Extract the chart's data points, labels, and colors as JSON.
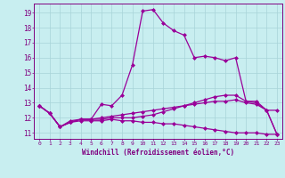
{
  "xlabel": "Windchill (Refroidissement éolien,°C)",
  "ylabel": "",
  "bg_color": "#c8eef0",
  "grid_color": "#a8d4d8",
  "line_color": "#990099",
  "xlim": [
    -0.5,
    23.5
  ],
  "ylim": [
    10.6,
    19.6
  ],
  "yticks": [
    11,
    12,
    13,
    14,
    15,
    16,
    17,
    18,
    19
  ],
  "xticks": [
    0,
    1,
    2,
    3,
    4,
    5,
    6,
    7,
    8,
    9,
    10,
    11,
    12,
    13,
    14,
    15,
    16,
    17,
    18,
    19,
    20,
    21,
    22,
    23
  ],
  "curve1_x": [
    0,
    1,
    2,
    3,
    4,
    5,
    6,
    7,
    8,
    9,
    10,
    11,
    12,
    13,
    14,
    15,
    16,
    17,
    18,
    19,
    20,
    21,
    22,
    23
  ],
  "curve1_y": [
    12.8,
    12.3,
    11.4,
    11.8,
    11.9,
    11.9,
    12.9,
    12.8,
    13.5,
    15.5,
    19.1,
    19.2,
    18.3,
    17.8,
    17.5,
    16.0,
    16.1,
    16.0,
    15.8,
    16.0,
    13.1,
    13.1,
    12.5,
    12.5
  ],
  "curve2_x": [
    0,
    1,
    2,
    3,
    4,
    5,
    6,
    7,
    8,
    9,
    10,
    11,
    12,
    13,
    14,
    15,
    16,
    17,
    18,
    19,
    20,
    21,
    22,
    23
  ],
  "curve2_y": [
    12.8,
    12.3,
    11.4,
    11.7,
    11.9,
    11.9,
    11.9,
    12.0,
    12.0,
    12.0,
    12.1,
    12.2,
    12.4,
    12.6,
    12.8,
    13.0,
    13.2,
    13.4,
    13.5,
    13.5,
    13.1,
    13.0,
    12.5,
    10.9
  ],
  "curve3_x": [
    0,
    1,
    2,
    3,
    4,
    5,
    6,
    7,
    8,
    9,
    10,
    11,
    12,
    13,
    14,
    15,
    16,
    17,
    18,
    19,
    20,
    21,
    22,
    23
  ],
  "curve3_y": [
    12.8,
    12.3,
    11.4,
    11.7,
    11.8,
    11.8,
    11.8,
    11.9,
    11.8,
    11.8,
    11.7,
    11.7,
    11.6,
    11.6,
    11.5,
    11.4,
    11.3,
    11.2,
    11.1,
    11.0,
    11.0,
    11.0,
    10.9,
    10.9
  ],
  "curve4_x": [
    0,
    1,
    2,
    3,
    4,
    5,
    6,
    7,
    8,
    9,
    10,
    11,
    12,
    13,
    14,
    15,
    16,
    17,
    18,
    19,
    20,
    21,
    22,
    23
  ],
  "curve4_y": [
    12.8,
    12.3,
    11.4,
    11.7,
    11.9,
    11.9,
    12.0,
    12.1,
    12.2,
    12.3,
    12.4,
    12.5,
    12.6,
    12.7,
    12.8,
    12.9,
    13.0,
    13.1,
    13.1,
    13.2,
    13.0,
    12.9,
    12.5,
    10.9
  ],
  "marker": "D",
  "markersize": 2.0,
  "linewidth": 0.9
}
